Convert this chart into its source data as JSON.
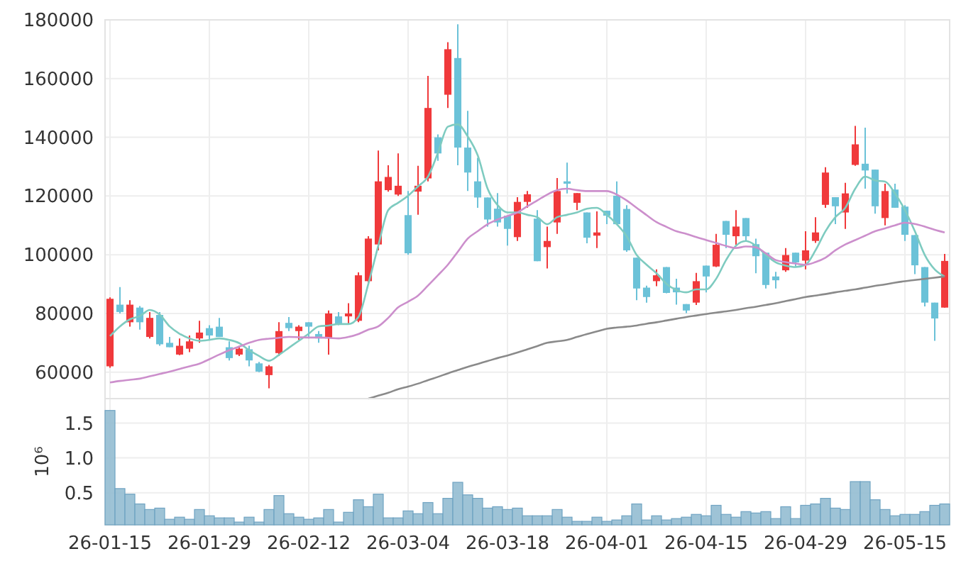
{
  "chart_data": [
    {
      "type": "candlestick",
      "tick_labels": "y",
      "grid": true,
      "ylim": [
        51000,
        180000
      ],
      "yticks": [
        60000,
        80000,
        100000,
        120000,
        140000,
        160000,
        180000
      ],
      "categories": [
        null,
        null,
        null,
        null,
        null,
        null,
        null,
        null,
        null,
        null,
        null,
        null,
        null,
        null,
        null,
        null,
        null,
        null,
        null,
        null,
        null,
        null,
        null,
        null,
        null,
        null,
        null,
        null,
        null,
        null,
        null,
        null,
        null,
        null,
        null,
        null,
        null,
        null,
        null,
        null,
        null,
        null,
        null,
        null,
        null,
        null,
        null,
        null,
        null,
        null,
        null,
        null,
        null,
        null,
        null,
        null,
        null,
        null,
        null,
        null,
        null,
        null,
        null,
        null,
        null,
        null,
        null,
        null,
        null,
        null,
        null,
        null,
        null,
        null,
        null,
        null,
        null,
        null,
        null,
        null,
        null,
        null,
        null,
        null,
        null
      ],
      "ohlc": [
        [
          62000,
          85500,
          61500,
          85000
        ],
        [
          83000,
          89000,
          80000,
          80500
        ],
        [
          77000,
          84500,
          75500,
          83000
        ],
        [
          82000,
          82500,
          74500,
          77000
        ],
        [
          72000,
          80500,
          71500,
          78500
        ],
        [
          79500,
          80500,
          69000,
          69500
        ],
        [
          70000,
          72000,
          68500,
          68500
        ],
        [
          66000,
          71500,
          65800,
          69000
        ],
        [
          68000,
          72500,
          66800,
          70500
        ],
        [
          71500,
          77500,
          70000,
          73500
        ],
        [
          75000,
          76000,
          71000,
          72500
        ],
        [
          75500,
          78500,
          72000,
          72000
        ],
        [
          68500,
          70500,
          64000,
          64800
        ],
        [
          66000,
          69000,
          65500,
          68000
        ],
        [
          67800,
          69000,
          62000,
          64000
        ],
        [
          63000,
          63500,
          60000,
          60200
        ],
        [
          59000,
          62500,
          54500,
          62000
        ],
        [
          66500,
          77000,
          65500,
          74000
        ],
        [
          76800,
          78800,
          74000,
          75000
        ],
        [
          74000,
          76000,
          71000,
          75500
        ],
        [
          77000,
          77000,
          71500,
          75500
        ],
        [
          73000,
          74000,
          70000,
          71500
        ],
        [
          71500,
          81000,
          66000,
          80000
        ],
        [
          79000,
          80500,
          76000,
          76500
        ],
        [
          79000,
          83500,
          76500,
          80000
        ],
        [
          77500,
          94000,
          77000,
          93000
        ],
        [
          91000,
          106300,
          90100,
          105500
        ],
        [
          103500,
          135500,
          101500,
          125000
        ],
        [
          122000,
          130500,
          121500,
          126500
        ],
        [
          120500,
          134500,
          120000,
          123500
        ],
        [
          113500,
          121700,
          100000,
          100500
        ],
        [
          121500,
          130300,
          113600,
          123500
        ],
        [
          126000,
          160900,
          125000,
          150000
        ],
        [
          140000,
          141000,
          132000,
          134500
        ],
        [
          154500,
          172400,
          150000,
          170000
        ],
        [
          167000,
          178500,
          130500,
          136500
        ],
        [
          136500,
          149000,
          121700,
          128000
        ],
        [
          125000,
          133000,
          116000,
          119500
        ],
        [
          119500,
          119500,
          109600,
          112000
        ],
        [
          115700,
          121000,
          109600,
          111000
        ],
        [
          113300,
          113300,
          103100,
          108800
        ],
        [
          106000,
          119600,
          104700,
          118000
        ],
        [
          118000,
          121700,
          116000,
          120600
        ],
        [
          112300,
          115200,
          97800,
          97800
        ],
        [
          102600,
          109600,
          95300,
          104700
        ],
        [
          111000,
          126100,
          107100,
          121700
        ],
        [
          125000,
          131400,
          120900,
          124200
        ],
        [
          117700,
          121000,
          115200,
          121000
        ],
        [
          114400,
          114400,
          103900,
          105800
        ],
        [
          106500,
          114800,
          102300,
          107600
        ],
        [
          115000,
          115000,
          110400,
          113300
        ],
        [
          120100,
          125000,
          110400,
          110400
        ],
        [
          115600,
          116900,
          101000,
          101500
        ],
        [
          99000,
          99000,
          84500,
          88500
        ],
        [
          88800,
          89500,
          83700,
          85600
        ],
        [
          91000,
          95000,
          89300,
          93000
        ],
        [
          95800,
          95800,
          86900,
          87000
        ],
        [
          88800,
          91800,
          83000,
          87200
        ],
        [
          83200,
          83200,
          80100,
          81000
        ],
        [
          83700,
          93800,
          82900,
          91000
        ],
        [
          96300,
          96300,
          87200,
          92600
        ],
        [
          96000,
          107100,
          95800,
          103400
        ],
        [
          111500,
          111500,
          102300,
          106800
        ],
        [
          106300,
          115200,
          103400,
          109600
        ],
        [
          112500,
          112500,
          104500,
          106300
        ],
        [
          103600,
          105500,
          93700,
          99500
        ],
        [
          100700,
          100700,
          88500,
          89700
        ],
        [
          92600,
          94200,
          88500,
          91300
        ],
        [
          94700,
          102300,
          94200,
          99900
        ],
        [
          100700,
          100700,
          96000,
          97400
        ],
        [
          98000,
          108000,
          95000,
          101500
        ],
        [
          104700,
          112800,
          104000,
          107600
        ],
        [
          117000,
          129800,
          116000,
          128000
        ],
        [
          119600,
          119600,
          110400,
          116500
        ],
        [
          114400,
          124500,
          108800,
          120900
        ],
        [
          130600,
          143900,
          130300,
          137600
        ],
        [
          131000,
          143300,
          122500,
          128700
        ],
        [
          129000,
          129000,
          114000,
          116500
        ],
        [
          112500,
          124200,
          110000,
          121700
        ],
        [
          122200,
          124200,
          116000,
          116000
        ],
        [
          116400,
          116900,
          104700,
          106800
        ],
        [
          106700,
          106700,
          93400,
          96400
        ],
        [
          95800,
          95800,
          82400,
          83700
        ],
        [
          83700,
          83700,
          70700,
          78300
        ],
        [
          82000,
          100300,
          82000,
          97900
        ]
      ],
      "colors": [
        "#f0393b",
        "#6bc2d8",
        "#f0393b",
        "#6bc2d8",
        "#f0393b",
        "#6bc2d8",
        "#6bc2d8",
        "#f0393b",
        "#f0393b",
        "#f0393b",
        "#6bc2d8",
        "#6bc2d8",
        "#6bc2d8",
        "#f0393b",
        "#6bc2d8",
        "#6bc2d8",
        "#f0393b",
        "#f0393b",
        "#6bc2d8",
        "#f0393b",
        "#6bc2d8",
        "#6bc2d8",
        "#f0393b",
        "#6bc2d8",
        "#f0393b",
        "#f0393b",
        "#f0393b",
        "#f0393b",
        "#f0393b",
        "#f0393b",
        "#6bc2d8",
        "#f0393b",
        "#f0393b",
        "#6bc2d8",
        "#f0393b",
        "#6bc2d8",
        "#6bc2d8",
        "#6bc2d8",
        "#6bc2d8",
        "#6bc2d8",
        "#6bc2d8",
        "#f0393b",
        "#f0393b",
        "#6bc2d8",
        "#f0393b",
        "#f0393b",
        "#6bc2d8",
        "#f0393b",
        "#6bc2d8",
        "#f0393b",
        "#6bc2d8",
        "#6bc2d8",
        "#6bc2d8",
        "#6bc2d8",
        "#6bc2d8",
        "#f0393b",
        "#6bc2d8",
        "#6bc2d8",
        "#6bc2d8",
        "#f0393b",
        "#6bc2d8",
        "#f0393b",
        "#6bc2d8",
        "#f0393b",
        "#6bc2d8",
        "#6bc2d8",
        "#6bc2d8",
        "#6bc2d8",
        "#f0393b",
        "#6bc2d8",
        "#f0393b",
        "#f0393b",
        "#f0393b",
        "#6bc2d8",
        "#f0393b",
        "#f0393b",
        "#6bc2d8",
        "#6bc2d8",
        "#f0393b",
        "#6bc2d8",
        "#6bc2d8",
        "#6bc2d8",
        "#6bc2d8",
        "#6bc2d8",
        "#f0393b"
      ],
      "series": [
        {
          "type": "line",
          "color": "#7ecbc0",
          "values": [
            72300,
            75600,
            78000,
            79100,
            81200,
            79600,
            75600,
            73100,
            71500,
            70700,
            71000,
            71500,
            71000,
            69900,
            67500,
            65500,
            63900,
            65900,
            68300,
            70700,
            73100,
            75600,
            75900,
            76400,
            76400,
            78800,
            90100,
            103100,
            115200,
            117700,
            120100,
            123300,
            126600,
            134700,
            143600,
            144400,
            140300,
            133900,
            122500,
            116900,
            114400,
            114400,
            113600,
            112800,
            110400,
            112800,
            113600,
            114400,
            115700,
            116000,
            113600,
            110400,
            106300,
            99900,
            96600,
            93700,
            90100,
            88000,
            87200,
            88200,
            88200,
            91800,
            98200,
            103100,
            104700,
            103100,
            99900,
            97400,
            96300,
            95800,
            96600,
            101500,
            108000,
            112800,
            116000,
            122500,
            126600,
            125300,
            124900,
            120900,
            115200,
            108000,
            99900,
            95000,
            92600
          ]
        },
        {
          "type": "line",
          "color": "#cc8fcc",
          "values": [
            56500,
            57000,
            57400,
            57800,
            58600,
            59400,
            60200,
            61100,
            62000,
            62900,
            64400,
            66000,
            67500,
            68700,
            70000,
            71000,
            71400,
            71700,
            72000,
            71900,
            71800,
            71800,
            71700,
            71500,
            72000,
            73000,
            74500,
            75600,
            78500,
            82100,
            84000,
            86100,
            89500,
            93000,
            96600,
            101000,
            105500,
            108000,
            110400,
            112000,
            113200,
            114400,
            116500,
            118500,
            120500,
            122000,
            122500,
            122000,
            121700,
            121700,
            121700,
            120500,
            118500,
            116000,
            113500,
            111100,
            109500,
            108000,
            107100,
            106000,
            105000,
            104000,
            103000,
            102300,
            102800,
            102500,
            100500,
            98200,
            97500,
            97000,
            96600,
            97500,
            99000,
            101500,
            103500,
            105000,
            106500,
            108000,
            109000,
            110000,
            110900,
            110500,
            109600,
            108500,
            107600
          ]
        },
        {
          "type": "line",
          "color": "#8a8a8a",
          "values": [
            null,
            null,
            null,
            null,
            null,
            null,
            null,
            null,
            null,
            null,
            null,
            null,
            null,
            null,
            null,
            null,
            null,
            null,
            null,
            null,
            null,
            null,
            null,
            null,
            null,
            null,
            51000,
            52000,
            53000,
            54200,
            55100,
            56100,
            57300,
            58400,
            59600,
            60700,
            61800,
            62800,
            63800,
            64800,
            65700,
            66700,
            67800,
            68900,
            70000,
            70500,
            71000,
            72000,
            73000,
            73900,
            74800,
            75200,
            75500,
            75900,
            76500,
            77000,
            77600,
            78200,
            78800,
            79300,
            79800,
            80300,
            80700,
            81200,
            81800,
            82300,
            82900,
            83500,
            84200,
            84900,
            85600,
            86100,
            86600,
            87200,
            87700,
            88200,
            88800,
            89400,
            89900,
            90500,
            91000,
            91400,
            91800,
            92200,
            92600
          ]
        }
      ]
    },
    {
      "type": "bar",
      "grid": true,
      "ylabel": "10⁶",
      "color": "#93bcd1",
      "ylim": [
        0.04,
        1.85
      ],
      "yticks": [
        {
          "value": 0.5,
          "label": "0.5"
        },
        {
          "value": 1,
          "label": "1.0"
        },
        {
          "value": 1.5,
          "label": "1.5"
        }
      ],
      "categories": [
        "26-01-15",
        null,
        null,
        null,
        null,
        null,
        null,
        null,
        null,
        null,
        "26-01-29",
        null,
        null,
        null,
        null,
        null,
        null,
        null,
        null,
        null,
        "26-02-12",
        null,
        null,
        null,
        null,
        null,
        null,
        null,
        null,
        null,
        "26-03-04",
        null,
        null,
        null,
        null,
        null,
        null,
        null,
        null,
        null,
        "26-03-18",
        null,
        null,
        null,
        null,
        null,
        null,
        null,
        null,
        null,
        "26-04-01",
        null,
        null,
        null,
        null,
        null,
        null,
        null,
        null,
        null,
        "26-04-15",
        null,
        null,
        null,
        null,
        null,
        null,
        null,
        null,
        null,
        "26-04-29",
        null,
        null,
        null,
        null,
        null,
        null,
        null,
        null,
        null,
        "26-05-15",
        null,
        null,
        null,
        null
      ],
      "values": [
        1.68,
        0.56,
        0.48,
        0.34,
        0.26,
        0.28,
        0.12,
        0.15,
        0.12,
        0.26,
        0.17,
        0.14,
        0.14,
        0.08,
        0.15,
        0.08,
        0.26,
        0.46,
        0.2,
        0.15,
        0.12,
        0.14,
        0.26,
        0.08,
        0.22,
        0.4,
        0.3,
        0.48,
        0.14,
        0.14,
        0.24,
        0.2,
        0.36,
        0.2,
        0.42,
        0.65,
        0.47,
        0.42,
        0.28,
        0.3,
        0.26,
        0.28,
        0.17,
        0.17,
        0.17,
        0.26,
        0.15,
        0.09,
        0.09,
        0.15,
        0.09,
        0.11,
        0.17,
        0.34,
        0.11,
        0.17,
        0.11,
        0.13,
        0.15,
        0.19,
        0.17,
        0.32,
        0.19,
        0.15,
        0.23,
        0.21,
        0.23,
        0.13,
        0.3,
        0.13,
        0.32,
        0.34,
        0.42,
        0.28,
        0.26,
        0.66,
        0.66,
        0.4,
        0.26,
        0.17,
        0.19,
        0.19,
        0.23,
        0.32,
        0.34
      ]
    }
  ]
}
